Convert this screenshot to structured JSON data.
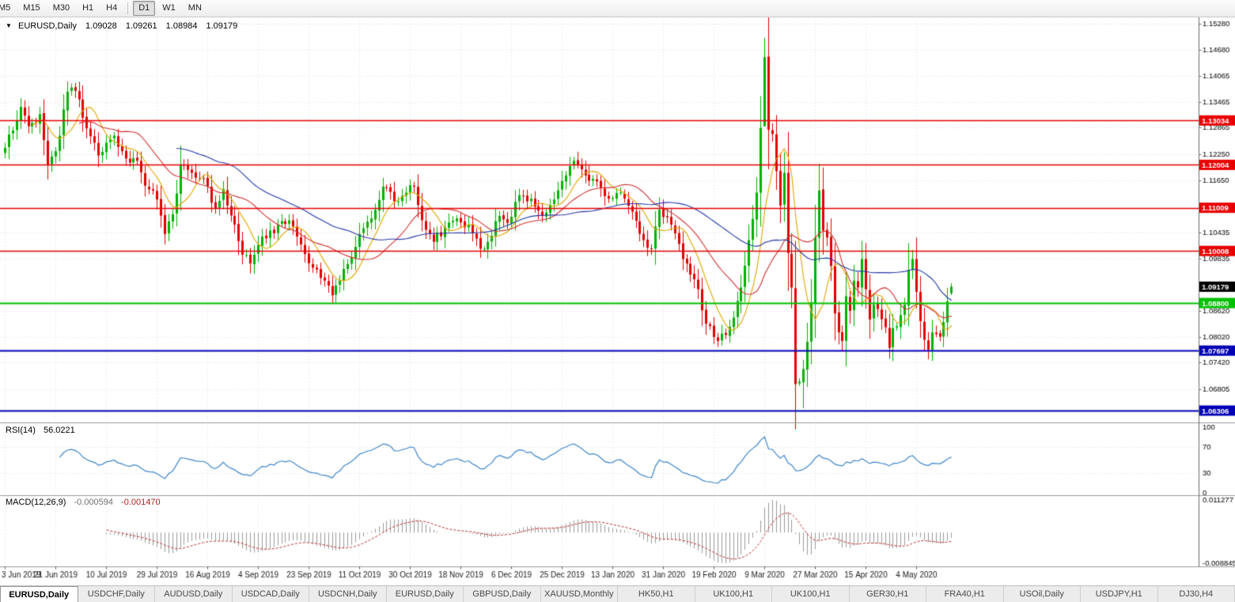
{
  "toolbar": {
    "timeframes": [
      "M5",
      "M15",
      "M30",
      "H1",
      "H4",
      "D1",
      "W1",
      "MN"
    ],
    "active_timeframe": "D1"
  },
  "chart_header": {
    "symbol": "EURUSD,Daily",
    "open": "1.09028",
    "high": "1.09261",
    "low": "1.08984",
    "close": "1.09179"
  },
  "indicators": {
    "rsi": {
      "label": "RSI(14)",
      "value": "56.0221"
    },
    "macd": {
      "label": "MACD(12,26,9)",
      "value_main": "-0.000594",
      "value_signal": "-0.001470"
    }
  },
  "chart_data": {
    "type": "candlestick",
    "symbol": "EURUSD",
    "timeframe": "Daily",
    "x_labels": [
      "3 Jun 2019",
      "21 Jun 2019",
      "10 Jul 2019",
      "29 Jul 2019",
      "16 Aug 2019",
      "4 Sep 2019",
      "23 Sep 2019",
      "11 Oct 2019",
      "30 Oct 2019",
      "18 Nov 2019",
      "6 Dec 2019",
      "25 Dec 2019",
      "13 Jan 2020",
      "31 Jan 2020",
      "19 Feb 2020",
      "9 Mar 2020",
      "27 Mar 2020",
      "15 Apr 2020",
      "4 May 2020"
    ],
    "bars_per_label": 13,
    "last_day": 243,
    "price_axis": {
      "min": 1.0605,
      "max": 1.1535,
      "ticks": [
        1.1528,
        1.1468,
        1.14065,
        1.13465,
        1.12865,
        1.1225,
        1.1165,
        1.10435,
        1.09835,
        1.0862,
        1.0802,
        1.0742,
        1.06805
      ]
    },
    "levels": {
      "red": [
        1.13034,
        1.12004,
        1.11009,
        1.10008
      ],
      "green": [
        1.088
      ],
      "blue": [
        1.07697,
        1.06306
      ],
      "current": 1.09179
    },
    "price_path": [
      [
        0,
        1.124
      ],
      [
        2,
        1.128
      ],
      [
        4,
        1.1335
      ],
      [
        6,
        1.129
      ],
      [
        9,
        1.1318
      ],
      [
        11,
        1.12
      ],
      [
        13,
        1.1232
      ],
      [
        16,
        1.137
      ],
      [
        18,
        1.1372
      ],
      [
        21,
        1.1285
      ],
      [
        24,
        1.1222
      ],
      [
        26,
        1.1252
      ],
      [
        28,
        1.1268
      ],
      [
        31,
        1.1215
      ],
      [
        34,
        1.121
      ],
      [
        36,
        1.1152
      ],
      [
        39,
        1.112
      ],
      [
        41,
        1.104
      ],
      [
        43,
        1.1086
      ],
      [
        45,
        1.12
      ],
      [
        48,
        1.1182
      ],
      [
        51,
        1.1168
      ],
      [
        54,
        1.11
      ],
      [
        56,
        1.1144
      ],
      [
        59,
        1.1062
      ],
      [
        61,
        1.0992
      ],
      [
        63,
        1.0972
      ],
      [
        66,
        1.1034
      ],
      [
        69,
        1.1042
      ],
      [
        71,
        1.107
      ],
      [
        74,
        1.1058
      ],
      [
        76,
        1.1016
      ],
      [
        79,
        1.0962
      ],
      [
        82,
        1.0932
      ],
      [
        84,
        1.0898
      ],
      [
        86,
        1.0932
      ],
      [
        89,
        1.0986
      ],
      [
        91,
        1.104
      ],
      [
        94,
        1.1076
      ],
      [
        97,
        1.115
      ],
      [
        100,
        1.1116
      ],
      [
        103,
        1.1136
      ],
      [
        105,
        1.115
      ],
      [
        107,
        1.1072
      ],
      [
        110,
        1.1022
      ],
      [
        113,
        1.1056
      ],
      [
        116,
        1.1076
      ],
      [
        119,
        1.1062
      ],
      [
        122,
        1.1006
      ],
      [
        124,
        1.1022
      ],
      [
        127,
        1.1082
      ],
      [
        129,
        1.1066
      ],
      [
        132,
        1.113
      ],
      [
        135,
        1.1122
      ],
      [
        138,
        1.1082
      ],
      [
        141,
        1.112
      ],
      [
        144,
        1.1176
      ],
      [
        146,
        1.121
      ],
      [
        149,
        1.1176
      ],
      [
        152,
        1.1162
      ],
      [
        155,
        1.1122
      ],
      [
        158,
        1.1136
      ],
      [
        161,
        1.1092
      ],
      [
        164,
        1.1026
      ],
      [
        166,
        1.1006
      ],
      [
        168,
        1.1096
      ],
      [
        171,
        1.1062
      ],
      [
        174,
        1.0982
      ],
      [
        176,
        1.0946
      ],
      [
        178,
        1.0912
      ],
      [
        180,
        1.0832
      ],
      [
        183,
        1.0792
      ],
      [
        185,
        1.0806
      ],
      [
        187,
        1.0846
      ],
      [
        189,
        1.0916
      ],
      [
        191,
        1.1026
      ],
      [
        193,
        1.1136
      ],
      [
        194,
        1.1286
      ],
      [
        195,
        1.145
      ],
      [
        196,
        1.1282
      ],
      [
        197,
        1.1272
      ],
      [
        198,
        1.1186
      ],
      [
        199,
        1.1106
      ],
      [
        200,
        1.1182
      ],
      [
        201,
        1.0996
      ],
      [
        202,
        1.0916
      ],
      [
        203,
        1.0692
      ],
      [
        204,
        1.0698
      ],
      [
        205,
        1.0727
      ],
      [
        206,
        1.079
      ],
      [
        207,
        1.0882
      ],
      [
        208,
        1.1032
      ],
      [
        209,
        1.1141
      ],
      [
        210,
        1.1048
      ],
      [
        211,
        1.1032
      ],
      [
        212,
        1.0966
      ],
      [
        213,
        1.0856
      ],
      [
        214,
        1.0812
      ],
      [
        215,
        1.0792
      ],
      [
        216,
        1.0896
      ],
      [
        217,
        1.0862
      ],
      [
        218,
        1.0932
      ],
      [
        219,
        1.0916
      ],
      [
        220,
        1.0982
      ],
      [
        221,
        1.0912
      ],
      [
        222,
        1.0842
      ],
      [
        223,
        1.0876
      ],
      [
        224,
        1.0866
      ],
      [
        226,
        1.0824
      ],
      [
        227,
        1.0776
      ],
      [
        228,
        1.0822
      ],
      [
        229,
        1.0826
      ],
      [
        231,
        1.0876
      ],
      [
        232,
        1.0956
      ],
      [
        233,
        1.0982
      ],
      [
        234,
        1.0906
      ],
      [
        235,
        1.0838
      ],
      [
        236,
        1.0795
      ],
      [
        237,
        1.0772
      ],
      [
        238,
        1.0812
      ],
      [
        239,
        1.0808
      ],
      [
        240,
        1.0802
      ],
      [
        241,
        1.0836
      ],
      [
        242,
        1.0884
      ],
      [
        243,
        1.09179
      ]
    ],
    "special_bars": {
      "84": {
        "low": 1.0879
      },
      "195": {
        "open": 1.129,
        "high": 1.1495,
        "low": 1.129
      },
      "205": {
        "low": 1.0636
      },
      "232": {
        "high": 1.1019
      },
      "243": {
        "open": 1.09028,
        "high": 1.09261,
        "low": 1.08984,
        "close": 1.09179
      }
    },
    "moving_averages": [
      {
        "period": 8,
        "color": "#DFA700"
      },
      {
        "period": 20,
        "color": "#D23030"
      },
      {
        "period": 45,
        "color": "#2337A8"
      }
    ],
    "colors": {
      "up": "#00B100",
      "down": "#E00000",
      "level_red": "#E80000",
      "level_green": "#00C000",
      "level_blue": "#0000B4",
      "current_tag": "#000000"
    },
    "rsi": {
      "period": 14,
      "last_value": 56.0221,
      "axis": [
        100,
        70,
        30,
        0
      ],
      "levels": [
        70,
        30
      ],
      "color": "#3E86C8"
    },
    "macd": {
      "fast": 12,
      "slow": 26,
      "signal": 9,
      "axis_max_label": "0.011277",
      "axis_min_label": "-0.008845",
      "hist_color": "#9A9A9A",
      "signal_color": "#C03030"
    }
  },
  "tabs": [
    {
      "label": "EURUSD,Daily",
      "active": true
    },
    {
      "label": "USDCHF,Daily"
    },
    {
      "label": "AUDUSD,Daily"
    },
    {
      "label": "USDCAD,Daily"
    },
    {
      "label": "USDCNH,Daily"
    },
    {
      "label": "EURUSD,Daily"
    },
    {
      "label": "GBPUSD,Daily"
    },
    {
      "label": "XAUUSD,Monthly"
    },
    {
      "label": "HK50,H1"
    },
    {
      "label": "UK100,H1"
    },
    {
      "label": "UK100,H1"
    },
    {
      "label": "GER30,H1"
    },
    {
      "label": "FRA40,H1"
    },
    {
      "label": "USOil,Daily"
    },
    {
      "label": "USDJPY,H1"
    },
    {
      "label": "DJ30,H4"
    }
  ]
}
